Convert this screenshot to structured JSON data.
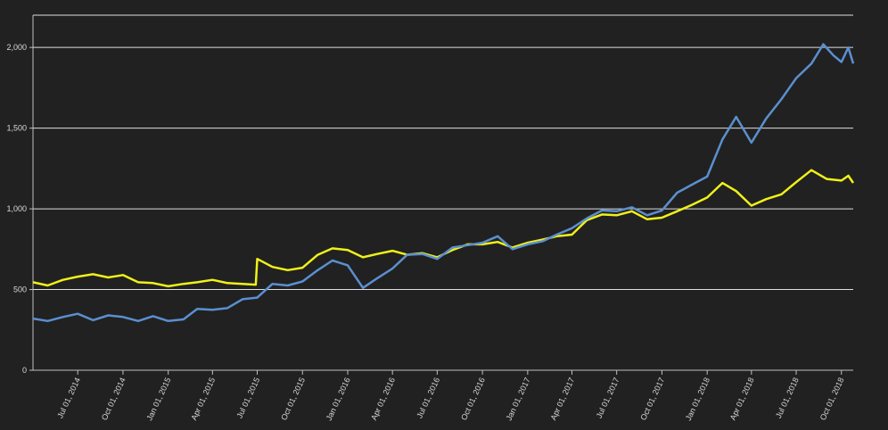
{
  "chart_data": {
    "type": "line",
    "title": "",
    "xlabel": "",
    "ylabel": "",
    "ylim": [
      0,
      2200
    ],
    "xlim": [
      "2014-04-01",
      "2018-10-25"
    ],
    "grid": "horizontal",
    "y_ticks": [
      {
        "value": 0,
        "label": "0"
      },
      {
        "value": 500,
        "label": "500"
      },
      {
        "value": 1000,
        "label": "1,000"
      },
      {
        "value": 1500,
        "label": "1,500"
      },
      {
        "value": 2000,
        "label": "2,000"
      }
    ],
    "x_ticks": [
      {
        "date": "2014-07-01",
        "label": "Jul 01, 2014"
      },
      {
        "date": "2014-10-01",
        "label": "Oct 01, 2014"
      },
      {
        "date": "2015-01-01",
        "label": "Jan 01, 2015"
      },
      {
        "date": "2015-04-01",
        "label": "Apr 01, 2015"
      },
      {
        "date": "2015-07-01",
        "label": "Jul 01, 2015"
      },
      {
        "date": "2015-10-01",
        "label": "Oct 01, 2015"
      },
      {
        "date": "2016-01-01",
        "label": "Jan 01, 2016"
      },
      {
        "date": "2016-04-01",
        "label": "Apr 01, 2016"
      },
      {
        "date": "2016-07-01",
        "label": "Jul 01, 2016"
      },
      {
        "date": "2016-10-01",
        "label": "Oct 01, 2016"
      },
      {
        "date": "2017-01-01",
        "label": "Jan 01, 2017"
      },
      {
        "date": "2017-04-01",
        "label": "Apr 01, 2017"
      },
      {
        "date": "2017-07-01",
        "label": "Jul 01, 2017"
      },
      {
        "date": "2017-10-01",
        "label": "Oct 01, 2017"
      },
      {
        "date": "2018-01-01",
        "label": "Jan 01, 2018"
      },
      {
        "date": "2018-04-01",
        "label": "Apr 01, 2018"
      },
      {
        "date": "2018-07-01",
        "label": "Jul 01, 2018"
      },
      {
        "date": "2018-10-01",
        "label": "Oct 01, 2018"
      }
    ],
    "series": [
      {
        "color": "#f0f01a",
        "points": [
          [
            "2014-04-01",
            545
          ],
          [
            "2014-05-01",
            525
          ],
          [
            "2014-06-01",
            560
          ],
          [
            "2014-07-01",
            580
          ],
          [
            "2014-08-01",
            595
          ],
          [
            "2014-09-01",
            575
          ],
          [
            "2014-10-01",
            590
          ],
          [
            "2014-11-01",
            545
          ],
          [
            "2014-12-01",
            540
          ],
          [
            "2015-01-01",
            520
          ],
          [
            "2015-02-01",
            535
          ],
          [
            "2015-03-01",
            545
          ],
          [
            "2015-04-01",
            560
          ],
          [
            "2015-05-01",
            540
          ],
          [
            "2015-06-01",
            535
          ],
          [
            "2015-06-28",
            530
          ],
          [
            "2015-07-01",
            690
          ],
          [
            "2015-08-01",
            640
          ],
          [
            "2015-09-01",
            620
          ],
          [
            "2015-10-01",
            635
          ],
          [
            "2015-11-01",
            715
          ],
          [
            "2015-12-01",
            755
          ],
          [
            "2016-01-01",
            745
          ],
          [
            "2016-02-01",
            700
          ],
          [
            "2016-03-01",
            720
          ],
          [
            "2016-04-01",
            740
          ],
          [
            "2016-05-01",
            715
          ],
          [
            "2016-06-01",
            725
          ],
          [
            "2016-07-01",
            700
          ],
          [
            "2016-08-01",
            745
          ],
          [
            "2016-09-01",
            780
          ],
          [
            "2016-10-01",
            780
          ],
          [
            "2016-11-01",
            795
          ],
          [
            "2016-12-01",
            760
          ],
          [
            "2017-01-01",
            790
          ],
          [
            "2017-02-01",
            810
          ],
          [
            "2017-03-01",
            830
          ],
          [
            "2017-04-01",
            840
          ],
          [
            "2017-05-01",
            930
          ],
          [
            "2017-06-01",
            965
          ],
          [
            "2017-07-01",
            960
          ],
          [
            "2017-08-01",
            985
          ],
          [
            "2017-09-01",
            935
          ],
          [
            "2017-10-01",
            945
          ],
          [
            "2017-11-01",
            985
          ],
          [
            "2017-12-01",
            1025
          ],
          [
            "2018-01-01",
            1070
          ],
          [
            "2018-02-01",
            1160
          ],
          [
            "2018-03-01",
            1110
          ],
          [
            "2018-04-01",
            1020
          ],
          [
            "2018-05-01",
            1060
          ],
          [
            "2018-06-01",
            1090
          ],
          [
            "2018-07-01",
            1165
          ],
          [
            "2018-08-01",
            1240
          ],
          [
            "2018-09-01",
            1185
          ],
          [
            "2018-10-01",
            1175
          ],
          [
            "2018-10-15",
            1205
          ],
          [
            "2018-10-25",
            1160
          ]
        ]
      },
      {
        "color": "#5b8fd0",
        "points": [
          [
            "2014-04-01",
            320
          ],
          [
            "2014-05-01",
            305
          ],
          [
            "2014-06-01",
            330
          ],
          [
            "2014-07-01",
            350
          ],
          [
            "2014-08-01",
            310
          ],
          [
            "2014-09-01",
            340
          ],
          [
            "2014-10-01",
            330
          ],
          [
            "2014-11-01",
            305
          ],
          [
            "2014-12-01",
            335
          ],
          [
            "2015-01-01",
            305
          ],
          [
            "2015-02-01",
            315
          ],
          [
            "2015-03-01",
            380
          ],
          [
            "2015-04-01",
            375
          ],
          [
            "2015-05-01",
            385
          ],
          [
            "2015-06-01",
            440
          ],
          [
            "2015-07-01",
            450
          ],
          [
            "2015-08-01",
            535
          ],
          [
            "2015-09-01",
            525
          ],
          [
            "2015-10-01",
            550
          ],
          [
            "2015-11-01",
            620
          ],
          [
            "2015-12-01",
            680
          ],
          [
            "2016-01-01",
            650
          ],
          [
            "2016-02-01",
            510
          ],
          [
            "2016-03-01",
            570
          ],
          [
            "2016-04-01",
            630
          ],
          [
            "2016-05-01",
            715
          ],
          [
            "2016-06-01",
            720
          ],
          [
            "2016-07-01",
            690
          ],
          [
            "2016-08-01",
            760
          ],
          [
            "2016-09-01",
            775
          ],
          [
            "2016-10-01",
            790
          ],
          [
            "2016-11-01",
            830
          ],
          [
            "2016-12-01",
            750
          ],
          [
            "2017-01-01",
            780
          ],
          [
            "2017-02-01",
            800
          ],
          [
            "2017-03-01",
            840
          ],
          [
            "2017-04-01",
            880
          ],
          [
            "2017-05-01",
            940
          ],
          [
            "2017-06-01",
            990
          ],
          [
            "2017-07-01",
            985
          ],
          [
            "2017-08-01",
            1010
          ],
          [
            "2017-09-01",
            960
          ],
          [
            "2017-10-01",
            990
          ],
          [
            "2017-11-01",
            1100
          ],
          [
            "2017-12-01",
            1150
          ],
          [
            "2018-01-01",
            1200
          ],
          [
            "2018-02-01",
            1430
          ],
          [
            "2018-03-01",
            1570
          ],
          [
            "2018-04-01",
            1410
          ],
          [
            "2018-05-01",
            1560
          ],
          [
            "2018-06-01",
            1680
          ],
          [
            "2018-07-01",
            1810
          ],
          [
            "2018-08-01",
            1900
          ],
          [
            "2018-08-25",
            2020
          ],
          [
            "2018-09-15",
            1950
          ],
          [
            "2018-10-01",
            1910
          ],
          [
            "2018-10-15",
            2000
          ],
          [
            "2018-10-25",
            1900
          ]
        ]
      }
    ]
  }
}
